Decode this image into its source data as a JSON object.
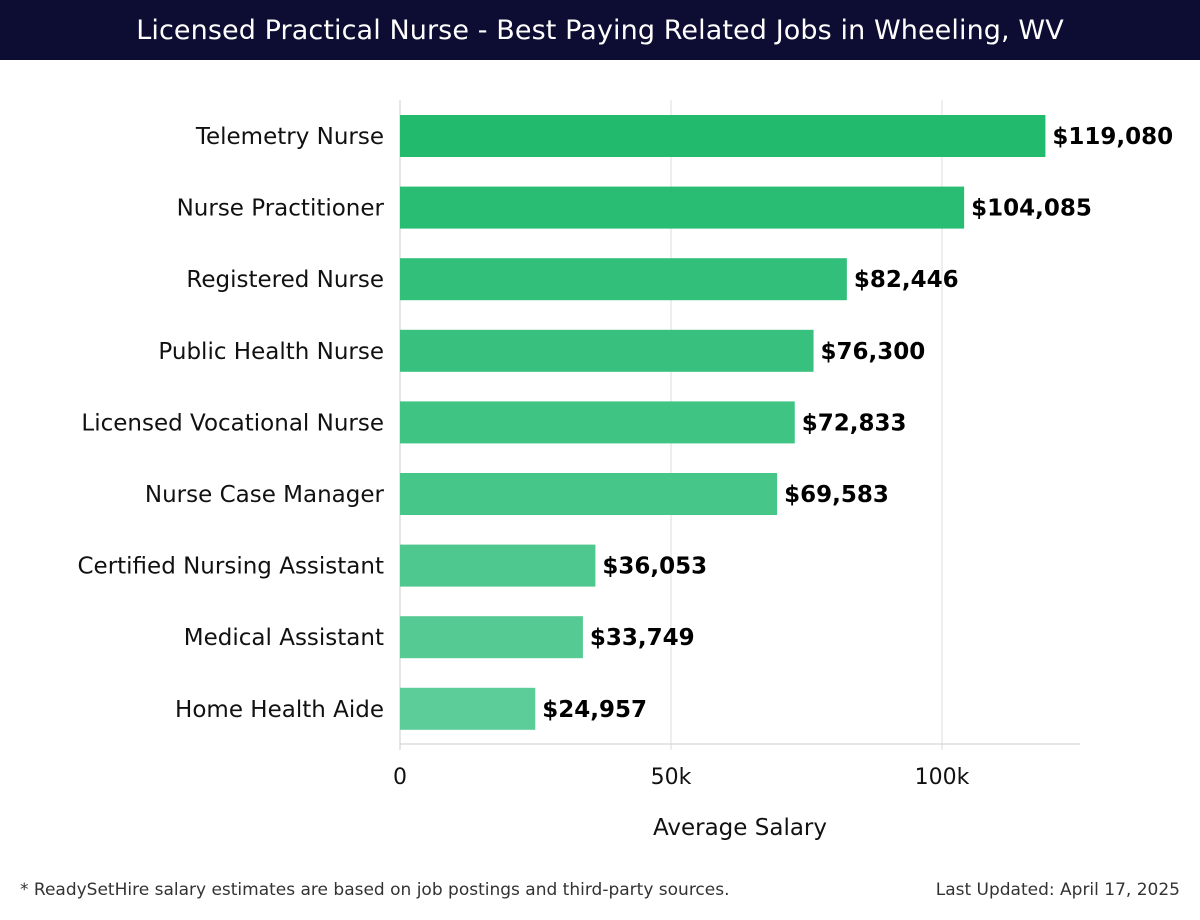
{
  "header": {
    "title": "Licensed Practical Nurse - Best Paying Related Jobs in Wheeling, WV"
  },
  "chart_data": {
    "type": "bar",
    "orientation": "horizontal",
    "categories": [
      "Telemetry Nurse",
      "Nurse Practitioner",
      "Registered Nurse",
      "Public Health Nurse",
      "Licensed Vocational Nurse",
      "Nurse Case Manager",
      "Certified Nursing Assistant",
      "Medical Assistant",
      "Home Health Aide"
    ],
    "values": [
      119080,
      104085,
      82446,
      76300,
      72833,
      69583,
      36053,
      33749,
      24957
    ],
    "value_labels": [
      "$119,080",
      "$104,085",
      "$82,446",
      "$76,300",
      "$72,833",
      "$69,583",
      "$36,053",
      "$33,749",
      "$24,957"
    ],
    "xlabel": "Average Salary",
    "ylabel": "",
    "xlim": [
      0,
      125000
    ],
    "x_ticks": [
      0,
      50000,
      100000
    ],
    "x_tick_labels": [
      "0",
      "50k",
      "100k"
    ],
    "grid": "vertical",
    "colors": {
      "bar_dark": "#22bb6e",
      "bar_light": "#5ccc98",
      "grid": "#dddddd",
      "axis": "#cccccc",
      "header_bg": "#0d0d33"
    }
  },
  "footer": {
    "note": "* ReadySetHire salary estimates are based on job postings and third-party sources.",
    "updated": "Last Updated: April 17, 2025"
  }
}
